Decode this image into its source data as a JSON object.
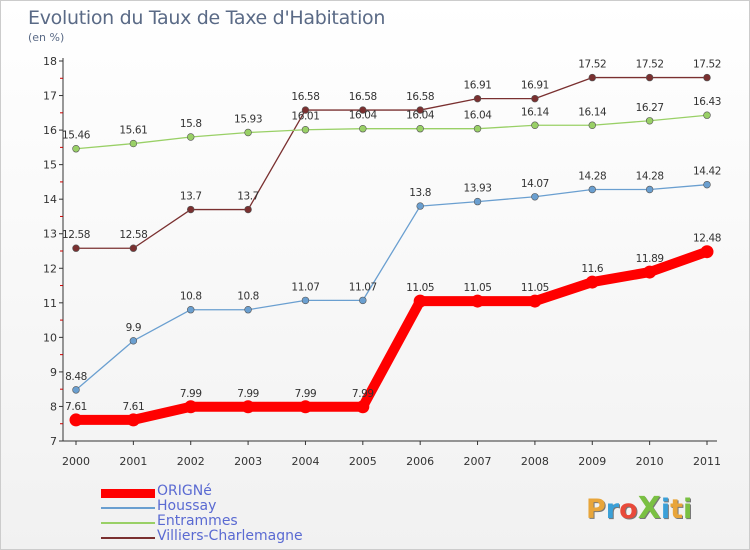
{
  "title": "Evolution du Taux de Taxe d'Habitation",
  "unit": "(en %)",
  "logo": {
    "text": "ProXiti",
    "colors": [
      "#e8a53a",
      "#3aa0d8",
      "#e84a3a",
      "#7ac043",
      "#3aa0d8",
      "#e8a53a",
      "#7ac043"
    ]
  },
  "chart_data": {
    "type": "line",
    "x": [
      "2000",
      "2001",
      "2002",
      "2003",
      "2004",
      "2005",
      "2006",
      "2007",
      "2008",
      "2009",
      "2010",
      "2011"
    ],
    "ylim": [
      7,
      18
    ],
    "yticks": [
      "7",
      "8",
      "9",
      "10",
      "11",
      "12",
      "13",
      "14",
      "15",
      "16",
      "17",
      "18"
    ],
    "grid": false,
    "legend_position": "bottom-left",
    "series": [
      {
        "name": "ORIGNé",
        "color": "#ff0000",
        "values": [
          7.61,
          7.61,
          7.99,
          7.99,
          7.99,
          7.99,
          11.05,
          11.05,
          11.05,
          11.6,
          11.89,
          12.48
        ],
        "labels": [
          "7.61",
          "7.61",
          "7.99",
          "7.99",
          "7.99",
          "7.99",
          "11.05",
          "11.05",
          "11.05",
          "11.6",
          "11.89",
          "12.48"
        ]
      },
      {
        "name": "Houssay",
        "color": "#6a9fd0",
        "values": [
          8.48,
          9.9,
          10.8,
          10.8,
          11.07,
          11.07,
          13.8,
          13.93,
          14.07,
          14.28,
          14.28,
          14.42
        ],
        "labels": [
          "8.48",
          "9.9",
          "10.8",
          "10.8",
          "11.07",
          "11.07",
          "13.8",
          "13.93",
          "14.07",
          "14.28",
          "14.28",
          "14.42"
        ]
      },
      {
        "name": "Entrammes",
        "color": "#99d066",
        "values": [
          15.46,
          15.61,
          15.8,
          15.93,
          16.01,
          16.04,
          16.04,
          16.04,
          16.14,
          16.14,
          16.27,
          16.43
        ],
        "labels": [
          "15.46",
          "15.61",
          "15.8",
          "15.93",
          "16.01",
          "16.04",
          "16.04",
          "16.04",
          "16.14",
          "16.14",
          "16.27",
          "16.43"
        ]
      },
      {
        "name": "Villiers-Charlemagne",
        "color": "#7a3030",
        "values": [
          12.58,
          12.58,
          13.7,
          13.7,
          16.58,
          16.58,
          16.58,
          16.91,
          16.91,
          17.52,
          17.52,
          17.52
        ],
        "labels": [
          "12.58",
          "12.58",
          "13.7",
          "13.7",
          "16.58",
          "16.58",
          "16.58",
          "16.91",
          "16.91",
          "17.52",
          "17.52",
          "17.52"
        ]
      }
    ]
  }
}
